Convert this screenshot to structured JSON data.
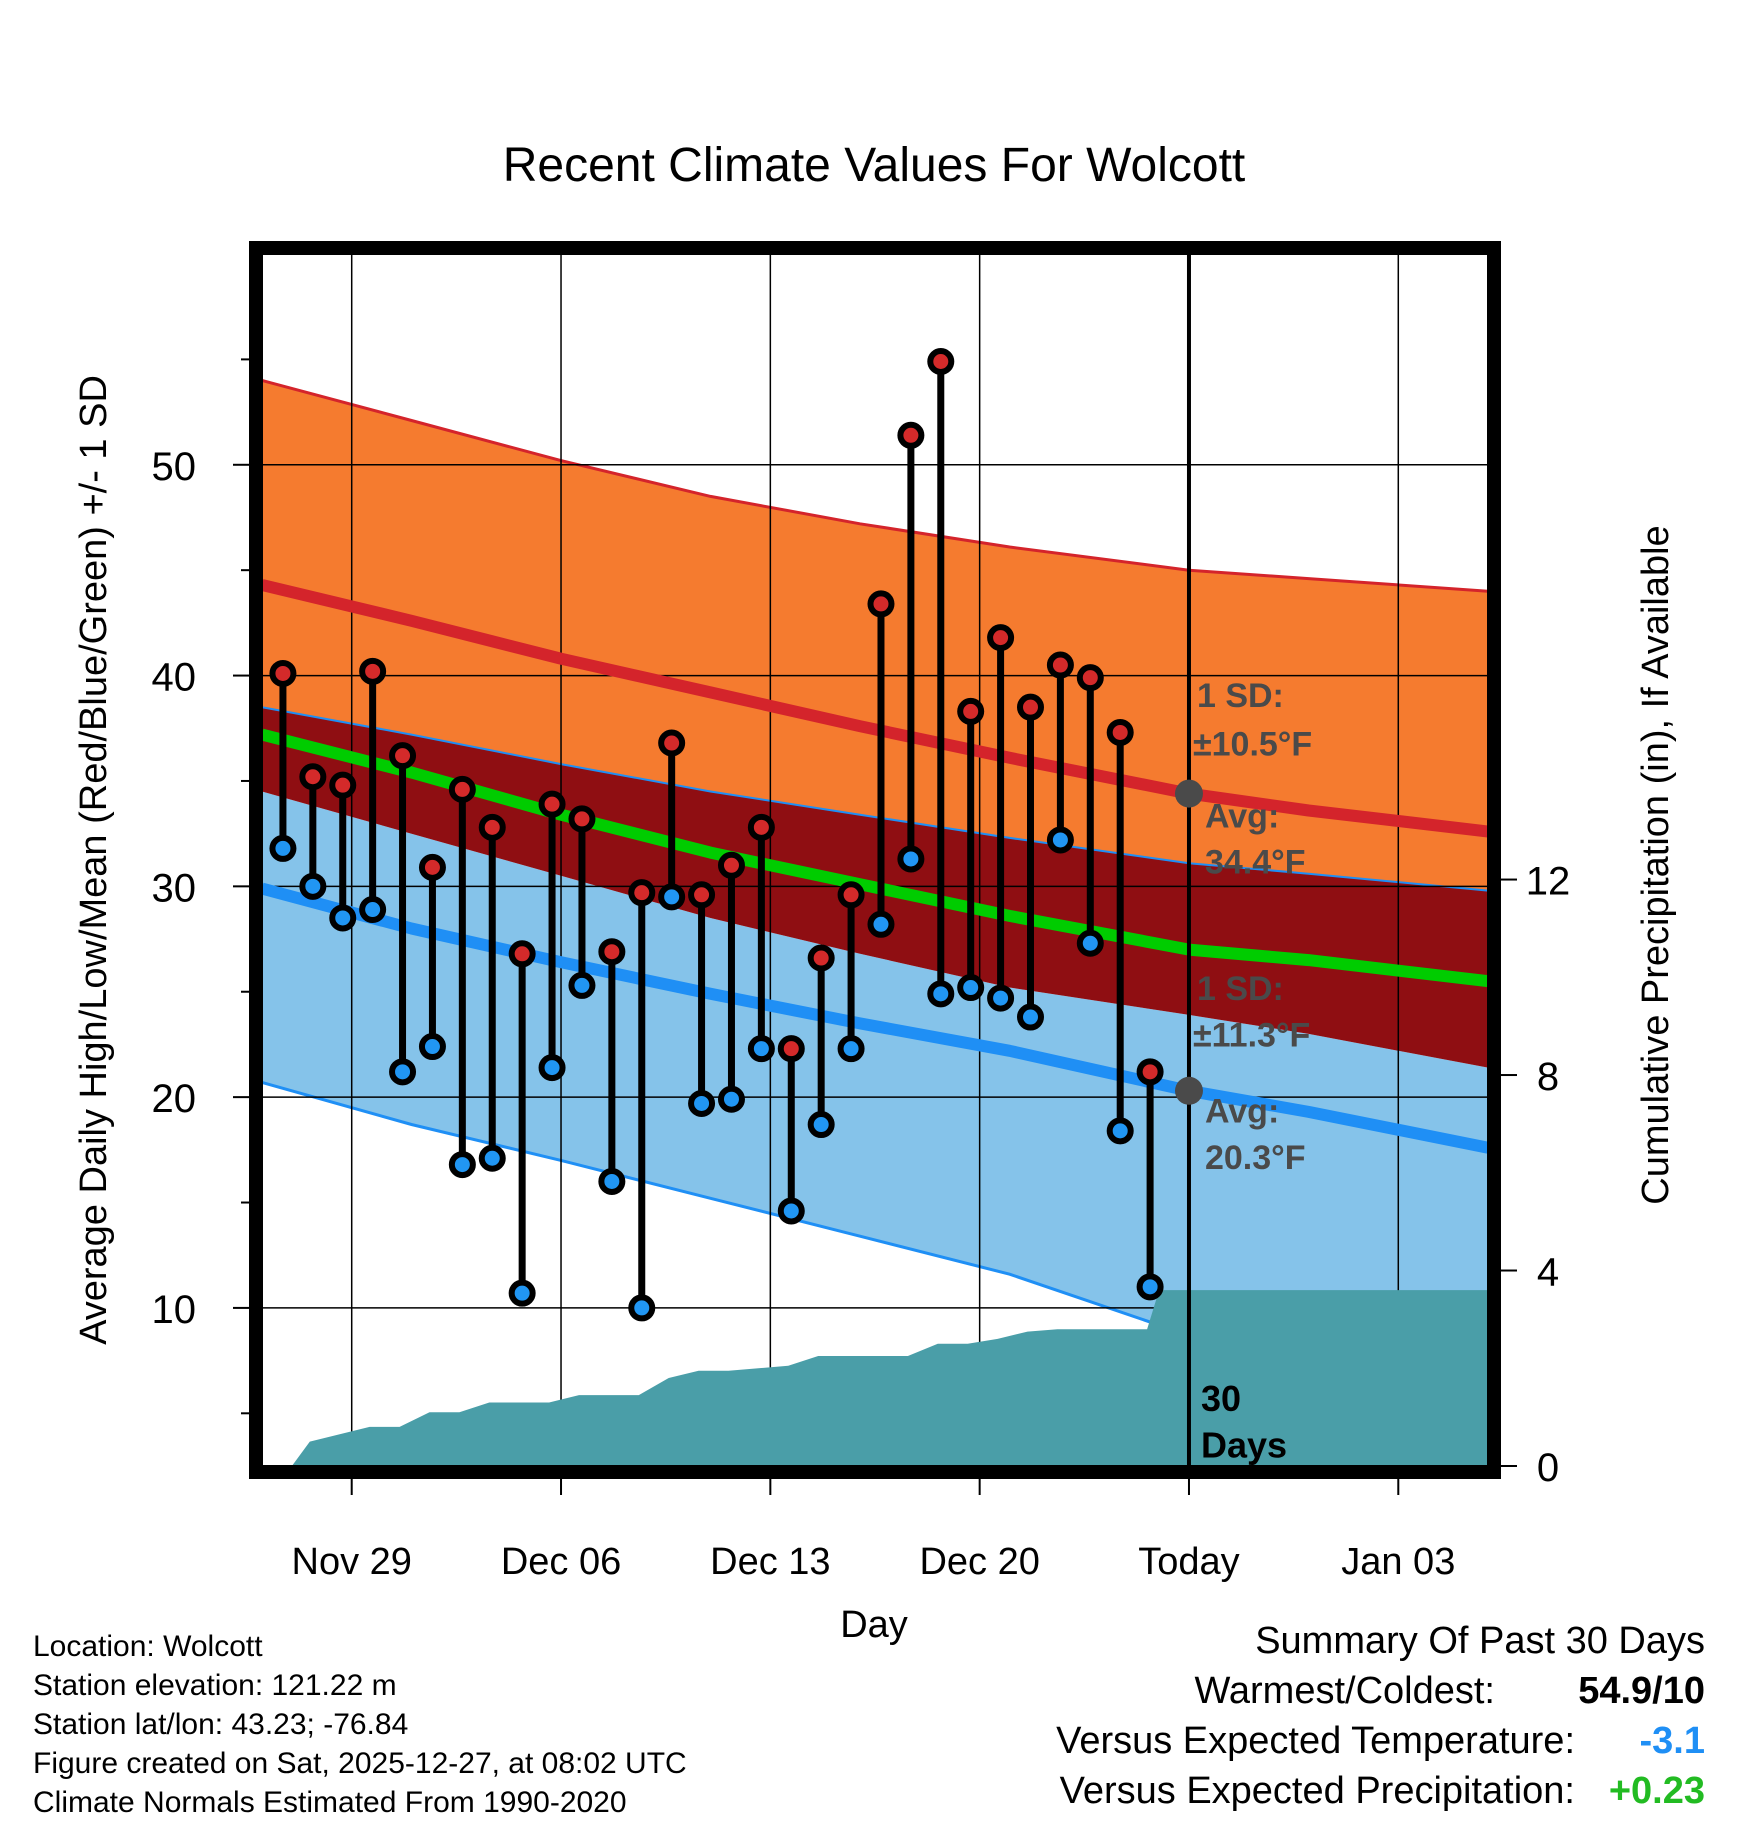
{
  "chart_data": {
    "type": "line",
    "title": "Recent Climate Values For Wolcott",
    "xlabel": "Day",
    "ylabel": "Average Daily High/Low/Mean (Red/Blue/Green) +/- 1 SD",
    "y2label": "Cumulative Precipitation (in), If Available",
    "x_tick_labels": [
      "Nov 29",
      "Dec 06",
      "Dec 13",
      "Dec 20",
      "Today",
      "Jan 03"
    ],
    "x_tick_days": [
      3,
      10,
      17,
      24,
      31,
      38
    ],
    "x_range_days": [
      0,
      41
    ],
    "today_day": 31,
    "ylim": [
      2.5,
      60
    ],
    "y_ticks": [
      10,
      20,
      30,
      40,
      50
    ],
    "y2lim": [
      0,
      24.8
    ],
    "y2_ticks": [
      0,
      4,
      8,
      12
    ],
    "colors": {
      "high_sd_band": "#f57b2f",
      "high_line": "#d4242b",
      "mid_band": "#8f0e12",
      "mean_line": "#00cc00",
      "low_line": "#1f8ff5",
      "low_sd_band": "#85c3ea",
      "precip": "#4a9ea8",
      "obs_high": "#d42a2a",
      "obs_low": "#2196f3",
      "marker_gray": "#4a4a4a"
    },
    "normal_curves": {
      "days": [
        0,
        5,
        10,
        15,
        20,
        25,
        31,
        35,
        41
      ],
      "high_plus_sd": [
        54.0,
        52.1,
        50.2,
        48.5,
        47.2,
        46.1,
        45.0,
        44.6,
        44.0
      ],
      "high": [
        44.3,
        42.6,
        40.8,
        39.2,
        37.6,
        36.1,
        34.4,
        33.6,
        32.6
      ],
      "high_minus_sd": [
        38.5,
        37.2,
        35.8,
        34.5,
        33.4,
        32.3,
        31.1,
        30.6,
        29.8
      ],
      "mean": [
        37.2,
        35.4,
        33.4,
        31.6,
        30.1,
        28.6,
        27.0,
        26.5,
        25.5
      ],
      "low_plus_sd": [
        34.5,
        32.5,
        30.5,
        28.5,
        26.8,
        25.2,
        23.9,
        23.0,
        21.4
      ],
      "low": [
        29.9,
        28.0,
        26.4,
        24.9,
        23.5,
        22.2,
        20.3,
        19.3,
        17.6
      ],
      "low_minus_sd": [
        20.7,
        18.7,
        17.0,
        15.2,
        13.4,
        11.6,
        8.7,
        8.0,
        7.0
      ]
    },
    "observations": {
      "days": [
        0.7,
        1.7,
        2.7,
        3.7,
        4.7,
        5.7,
        6.7,
        7.7,
        8.7,
        9.7,
        10.7,
        11.7,
        12.7,
        13.7,
        14.7,
        15.7,
        16.7,
        17.7,
        18.7,
        19.7,
        20.7,
        21.7,
        22.7,
        23.7,
        24.7,
        25.7,
        26.7,
        27.7,
        28.7,
        29.7
      ],
      "highs": [
        40.1,
        35.2,
        34.8,
        40.2,
        36.2,
        30.9,
        34.6,
        32.8,
        26.8,
        33.9,
        33.2,
        26.9,
        29.7,
        36.8,
        29.6,
        31.0,
        32.8,
        22.3,
        26.6,
        29.6,
        43.4,
        51.4,
        54.9,
        38.3,
        41.8,
        38.5,
        40.5,
        39.9,
        37.3,
        21.2
      ],
      "lows": [
        31.8,
        30.0,
        28.5,
        28.9,
        21.2,
        22.4,
        16.8,
        17.1,
        10.7,
        21.4,
        25.3,
        16.0,
        10.0,
        29.5,
        19.7,
        19.9,
        22.3,
        14.6,
        18.7,
        22.3,
        28.2,
        31.3,
        24.9,
        25.2,
        24.7,
        23.8,
        32.2,
        27.3,
        18.4,
        11.0
      ]
    },
    "precipitation": {
      "days": [
        1.0,
        1.6,
        2.6,
        3.6,
        4.6,
        5.6,
        6.6,
        7.6,
        8.6,
        9.6,
        10.6,
        11.6,
        12.6,
        13.6,
        14.6,
        15.6,
        16.6,
        17.6,
        18.6,
        19.6,
        20.6,
        21.6,
        22.6,
        23.6,
        24.6,
        25.6,
        26.6,
        27.6,
        28.6,
        29.6,
        30.0
      ],
      "cumulative_in": [
        0.0,
        0.5,
        0.65,
        0.8,
        0.8,
        1.1,
        1.1,
        1.3,
        1.3,
        1.3,
        1.45,
        1.45,
        1.45,
        1.8,
        1.95,
        1.95,
        2.0,
        2.05,
        2.25,
        2.25,
        2.25,
        2.25,
        2.5,
        2.5,
        2.6,
        2.75,
        2.8,
        2.8,
        2.8,
        2.8,
        3.6
      ],
      "after_today_in": 3.6
    },
    "annotations": {
      "high_sd": "1 SD:",
      "high_sd_value": "±10.5°F",
      "high_avg": "Avg:",
      "high_avg_value": 34.4,
      "high_avg_text": "34.4°F",
      "low_sd": "1 SD:",
      "low_sd_value": "±11.3°F",
      "low_avg": "Avg:",
      "low_avg_value": 20.3,
      "low_avg_text": "20.3°F",
      "days_label_1": "30",
      "days_label_2": "Days"
    }
  },
  "info": {
    "location": "Location: Wolcott",
    "elevation": "Station elevation: 121.22 m",
    "latlon": "Station lat/lon: 43.23; -76.84",
    "created": "Figure created on Sat, 2025-12-27, at 08:02 UTC",
    "normals": "Climate Normals Estimated From 1990-2020"
  },
  "summary": {
    "heading": "Summary Of Past 30 Days",
    "warm_cold_label": "Warmest/Coldest:",
    "warm_cold_value": "54.9/10",
    "temp_label": "Versus Expected Temperature:",
    "temp_value": "-3.1",
    "temp_color": "#1f8ff5",
    "precip_label": "Versus Expected Precipitation:",
    "precip_value": "+0.23",
    "precip_color": "#22bb22"
  }
}
